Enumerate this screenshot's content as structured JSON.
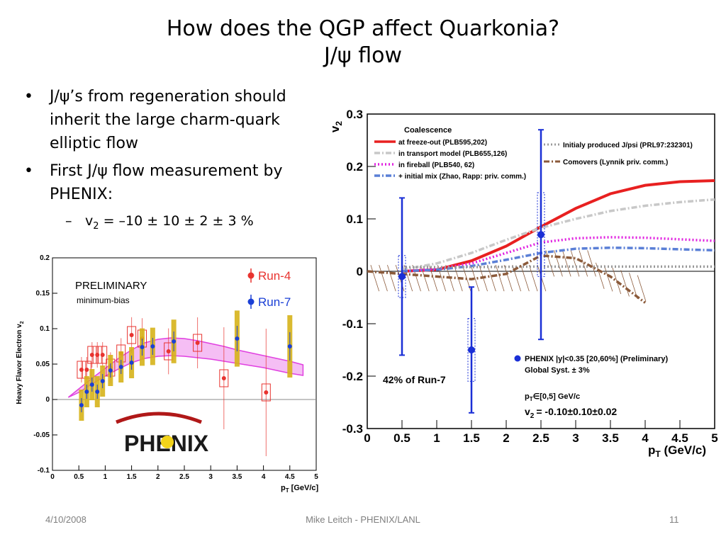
{
  "slide": {
    "title_line1": "How does the QGP affect Quarkonia?",
    "title_line2": "J/ψ flow",
    "bullets": [
      "J/ψ’s from regeneration should inherit the large charm-quark elliptic flow",
      "First J/ψ flow measurement by PHENIX:"
    ],
    "sub_bullet": {
      "prefix": "v",
      "subscript": "2",
      "value": " = –10 ± 10 ± 2 ± 3 %"
    },
    "footer": {
      "date": "4/10/2008",
      "author": "Mike Leitch - PHENIX/LANL",
      "page": "11"
    }
  },
  "chart_data": [
    {
      "type": "scatter",
      "xlabel": "p",
      "xlabel_sub": "T",
      "xlabel_unit": " [GeV/c]",
      "ylabel": "Heavy Flavor Electron v",
      "ylabel_sub": "2",
      "xlim": [
        0,
        5
      ],
      "ylim": [
        -0.1,
        0.2
      ],
      "xticks": [
        "0",
        "0.5",
        "1",
        "1.5",
        "2",
        "2.5",
        "3",
        "3.5",
        "4",
        "4.5",
        "5"
      ],
      "yticks": [
        "-0.1",
        "-0.05",
        "0",
        "0.05",
        "0.1",
        "0.15",
        "0.2"
      ],
      "annotations": [
        "PRELIMINARY",
        "minimum-bias"
      ],
      "logo": "PHENIX",
      "band": {
        "x": [
          0.3,
          0.5,
          0.75,
          1.0,
          1.25,
          1.5,
          1.75,
          2.0,
          2.25,
          2.5,
          2.75,
          3.0,
          3.25,
          3.5,
          3.75,
          4.0,
          4.25,
          4.5,
          4.75
        ],
        "upper": [
          0.003,
          0.015,
          0.03,
          0.044,
          0.058,
          0.07,
          0.08,
          0.085,
          0.087,
          0.086,
          0.083,
          0.079,
          0.075,
          0.07,
          0.066,
          0.062,
          0.058,
          0.054,
          0.049
        ],
        "lower": [
          0.003,
          0.01,
          0.022,
          0.033,
          0.043,
          0.052,
          0.058,
          0.061,
          0.062,
          0.061,
          0.059,
          0.057,
          0.054,
          0.051,
          0.048,
          0.045,
          0.041,
          0.037,
          0.034
        ]
      },
      "series": [
        {
          "name": "Run-4",
          "color": "#e8332f",
          "points": [
            {
              "x": 0.55,
              "y": 0.042,
              "err": 0.01
            },
            {
              "x": 0.65,
              "y": 0.042,
              "err": 0.01
            },
            {
              "x": 0.75,
              "y": 0.063,
              "err": 0.01
            },
            {
              "x": 0.85,
              "y": 0.063,
              "err": 0.01
            },
            {
              "x": 0.95,
              "y": 0.063,
              "err": 0.01
            },
            {
              "x": 1.1,
              "y": 0.045,
              "err": 0.012
            },
            {
              "x": 1.3,
              "y": 0.065,
              "err": 0.012
            },
            {
              "x": 1.5,
              "y": 0.091,
              "err": 0.014
            },
            {
              "x": 1.7,
              "y": 0.086,
              "err": 0.016
            },
            {
              "x": 2.2,
              "y": 0.068,
              "err": 0.018
            },
            {
              "x": 2.75,
              "y": 0.08,
              "err": 0.02
            },
            {
              "x": 3.25,
              "y": 0.03,
              "err": 0.04
            },
            {
              "x": 4.05,
              "y": 0.01,
              "err": 0.05
            }
          ]
        },
        {
          "name": "Run-7",
          "color": "#1a3fd6",
          "points": [
            {
              "x": 0.55,
              "y": -0.008,
              "err": 0.01
            },
            {
              "x": 0.65,
              "y": 0.011,
              "err": 0.01
            },
            {
              "x": 0.75,
              "y": 0.021,
              "err": 0.01
            },
            {
              "x": 0.85,
              "y": 0.011,
              "err": 0.01
            },
            {
              "x": 0.95,
              "y": 0.026,
              "err": 0.01
            },
            {
              "x": 1.1,
              "y": 0.041,
              "err": 0.01
            },
            {
              "x": 1.3,
              "y": 0.046,
              "err": 0.01
            },
            {
              "x": 1.5,
              "y": 0.052,
              "err": 0.01
            },
            {
              "x": 1.7,
              "y": 0.074,
              "err": 0.012
            },
            {
              "x": 1.9,
              "y": 0.075,
              "err": 0.012
            },
            {
              "x": 2.3,
              "y": 0.082,
              "err": 0.014
            },
            {
              "x": 3.5,
              "y": 0.086,
              "err": 0.018
            },
            {
              "x": 4.5,
              "y": 0.075,
              "err": 0.02
            }
          ]
        }
      ]
    },
    {
      "type": "line",
      "xlabel": "p",
      "xlabel_sub": "T",
      "xlabel_unit": " (GeV/c)",
      "ylabel": "v",
      "ylabel_sub": "2",
      "xlim": [
        0,
        5
      ],
      "ylim": [
        -0.3,
        0.3
      ],
      "xticks": [
        "0",
        "0.5",
        "1",
        "1.5",
        "2",
        "2.5",
        "3",
        "3.5",
        "4",
        "4.5",
        "5"
      ],
      "yticks": [
        "-0.3",
        "-0.2",
        "-0.1",
        "0",
        "0.1",
        "0.2",
        "0.3"
      ],
      "legend_title": "Coalescence",
      "legend_left": [
        {
          "label": "at freeze-out (PLB595,202)",
          "color": "#e82020",
          "style": "solid"
        },
        {
          "label": "in transport model (PLB655,126)",
          "color": "#c8c8c8",
          "style": "dashdot"
        },
        {
          "label": "in fireball (PLB540, 62)",
          "color": "#e020e0",
          "style": "dotted"
        },
        {
          "label": "+ initial mix (Zhao, Rapp: priv. comm.)",
          "color": "#5a7fd6",
          "style": "dashdot"
        }
      ],
      "legend_right": [
        {
          "label": "Initialy produced J/psi (PRL97:232301)",
          "color": "#9a9a9a",
          "style": "dotted"
        },
        {
          "label": "Comovers (Lynnik priv. comm.)",
          "color": "#8b5a3a",
          "style": "dashdot"
        }
      ],
      "annotations": {
        "run_fraction": "42% of Run-7",
        "phenix_legend": "PHENIX |y|<0.35 [20,60%] (Preliminary)",
        "global_syst": "Global Syst. ± 3%",
        "pt_range": "p",
        "pt_range_sub": "T",
        "pt_range_rest": "∈[0,5] GeV/c",
        "v2_prefix": "v",
        "v2_sub": "2",
        "v2_value": "= -0.10±0.10±0.02"
      },
      "curves": [
        {
          "name": "at freeze-out (PLB595,202)",
          "x": [
            0.5,
            1.0,
            1.5,
            2.0,
            2.5,
            3.0,
            3.5,
            4.0,
            4.5,
            5.0
          ],
          "y": [
            0.0,
            0.003,
            0.02,
            0.048,
            0.085,
            0.12,
            0.148,
            0.164,
            0.171,
            0.173
          ]
        },
        {
          "name": "in transport model (PLB655,126)",
          "x": [
            0.5,
            1.0,
            1.5,
            2.0,
            2.5,
            3.0,
            3.5,
            4.0,
            4.5,
            5.0
          ],
          "y": [
            0.003,
            0.015,
            0.035,
            0.06,
            0.083,
            0.1,
            0.115,
            0.125,
            0.132,
            0.137
          ]
        },
        {
          "name": "in fireball (PLB540, 62)",
          "x": [
            0.5,
            1.0,
            1.5,
            2.0,
            2.5,
            3.0,
            3.5,
            4.0,
            4.5,
            5.0
          ],
          "y": [
            0.0,
            0.005,
            0.015,
            0.035,
            0.055,
            0.063,
            0.065,
            0.064,
            0.061,
            0.058
          ]
        },
        {
          "name": "+ initial mix (Zhao, Rapp: priv. comm.)",
          "x": [
            0.5,
            1.0,
            1.5,
            2.0,
            2.5,
            3.0,
            3.5,
            4.0,
            4.5,
            5.0
          ],
          "y": [
            0.0,
            0.003,
            0.01,
            0.022,
            0.035,
            0.043,
            0.045,
            0.044,
            0.042,
            0.04
          ]
        },
        {
          "name": "Initialy produced J/psi (PRL97:232301)",
          "x": [
            0.5,
            1.5,
            2.5,
            3.5,
            4.5,
            5.0
          ],
          "y": [
            0.008,
            0.008,
            0.009,
            0.009,
            0.009,
            0.009
          ]
        },
        {
          "name": "Comovers (Lynnik priv. comm.)",
          "x": [
            0.0,
            0.5,
            1.0,
            1.5,
            2.0,
            2.5,
            3.0,
            3.5,
            4.0
          ],
          "y": [
            0.0,
            -0.005,
            -0.01,
            -0.015,
            -0.005,
            0.03,
            0.025,
            -0.01,
            -0.06
          ]
        }
      ],
      "series": [
        {
          "name": "PHENIX |y|<0.35 [20,60%] (Preliminary)",
          "color": "#1a2fd6",
          "points": [
            {
              "x": 0.5,
              "y": -0.01,
              "stat": 0.15,
              "syst": 0.04
            },
            {
              "x": 1.5,
              "y": -0.15,
              "stat": 0.12,
              "syst": 0.06
            },
            {
              "x": 2.5,
              "y": 0.07,
              "stat": 0.2,
              "syst": 0.08
            }
          ]
        }
      ]
    }
  ]
}
